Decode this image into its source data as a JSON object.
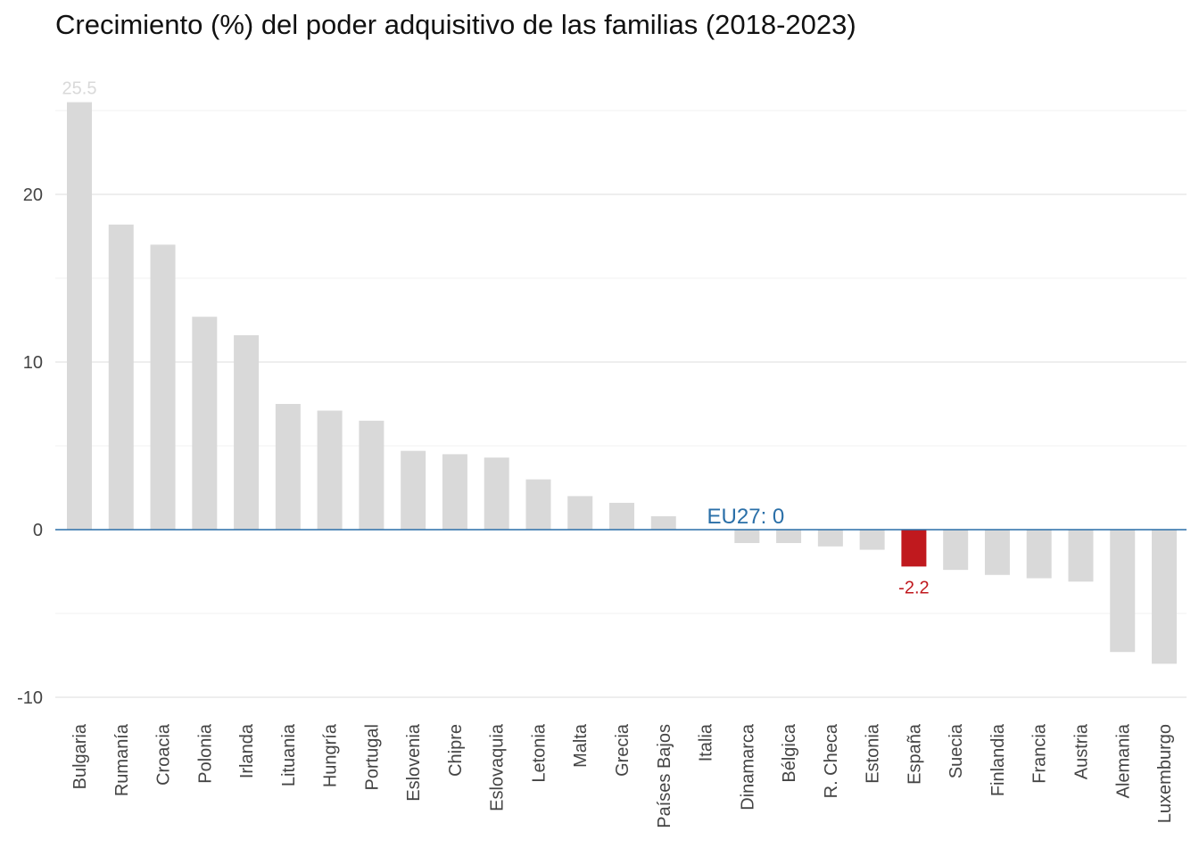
{
  "chart_data": {
    "type": "bar",
    "title": "Crecimiento (%) del poder adquisitivo de las familias (2018-2023)",
    "xlabel": "",
    "ylabel": "",
    "ylim": [
      -11,
      25.5
    ],
    "yticks": [
      -10,
      0,
      10,
      20
    ],
    "grid": true,
    "categories": [
      "Bulgaria",
      "Rumanía",
      "Croacia",
      "Polonia",
      "Irlanda",
      "Lituania",
      "Hungría",
      "Portugal",
      "Eslovenia",
      "Chipre",
      "Eslovaquia",
      "Letonia",
      "Malta",
      "Grecia",
      "Países Bajos",
      "Italia",
      "Dinamarca",
      "Bélgica",
      "R. Checa",
      "Estonia",
      "España",
      "Suecia",
      "Finlandia",
      "Francia",
      "Austria",
      "Alemania",
      "Luxemburgo"
    ],
    "values": [
      25.5,
      18.2,
      17.0,
      12.7,
      11.6,
      7.5,
      7.1,
      6.5,
      4.7,
      4.5,
      4.3,
      3.0,
      2.0,
      1.6,
      0.8,
      0.0,
      -0.8,
      -0.8,
      -1.0,
      -1.2,
      -2.2,
      -2.4,
      -2.7,
      -2.9,
      -3.1,
      -7.3,
      -8.0
    ],
    "colors": {
      "default": "#d9d9d9",
      "highlight": "#c0191e",
      "reference": "#2a6fa8",
      "grid": "#e6e6e6"
    },
    "highlight": "España",
    "data_labels": [
      {
        "category": "Bulgaria",
        "text": "25.5",
        "color": "#d9d9d9",
        "position": "above"
      },
      {
        "category": "España",
        "text": "-2.2",
        "color": "#c0191e",
        "position": "below"
      }
    ],
    "reference_line": {
      "value": 0,
      "label": "EU27: 0"
    }
  }
}
